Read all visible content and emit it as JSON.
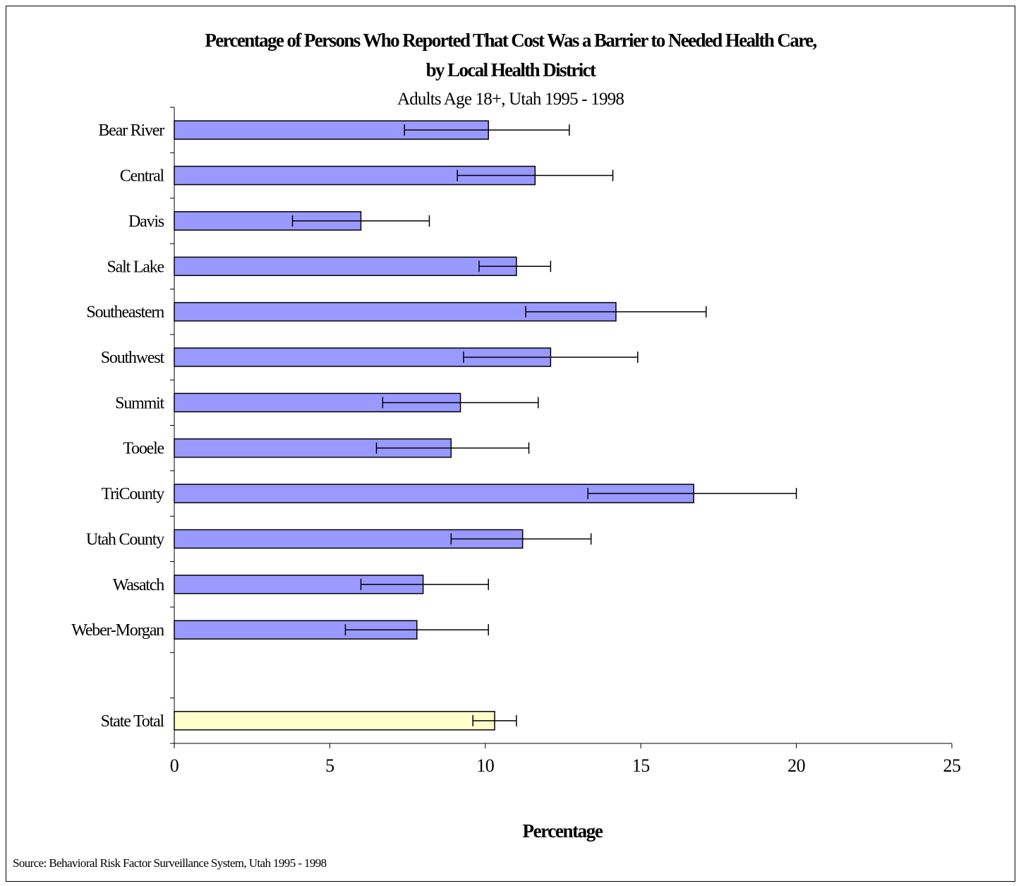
{
  "chart_data": {
    "type": "bar",
    "orientation": "horizontal",
    "title_line1": "Percentage of Persons Who Reported That Cost Was a Barrier to Needed Health Care,",
    "title_line2": "by Local Health District",
    "subtitle": "Adults Age 18+, Utah 1995 - 1998",
    "xlabel": "Percentage",
    "ylabel": "",
    "xlim": [
      0,
      25
    ],
    "xticks": [
      0,
      5,
      10,
      15,
      20,
      25
    ],
    "grid": false,
    "legend": "none",
    "colors": {
      "district_bar": "#9999ff",
      "state_bar": "#ffffcc",
      "outline": "#000000"
    },
    "categories": [
      "Bear River",
      "Central",
      "Davis",
      "Salt Lake",
      "Southeastern",
      "Southwest",
      "Summit",
      "Tooele",
      "TriCounty",
      "Utah County",
      "Wasatch",
      "Weber-Morgan",
      "",
      "State Total"
    ],
    "values": [
      10.1,
      11.6,
      6.0,
      11.0,
      14.2,
      12.1,
      9.2,
      8.9,
      16.7,
      11.2,
      8.0,
      7.8,
      null,
      10.3
    ],
    "ci_lower": [
      7.4,
      9.1,
      3.8,
      9.8,
      11.3,
      9.3,
      6.7,
      6.5,
      13.3,
      8.9,
      6.0,
      5.5,
      null,
      9.6
    ],
    "ci_upper": [
      12.7,
      14.1,
      8.2,
      12.1,
      17.1,
      14.9,
      11.7,
      11.4,
      20.0,
      13.4,
      10.1,
      10.1,
      null,
      11.0
    ]
  },
  "footer": {
    "source": "Source: Behavioral Risk Factor Surveillance System, Utah 1995 - 1998"
  }
}
